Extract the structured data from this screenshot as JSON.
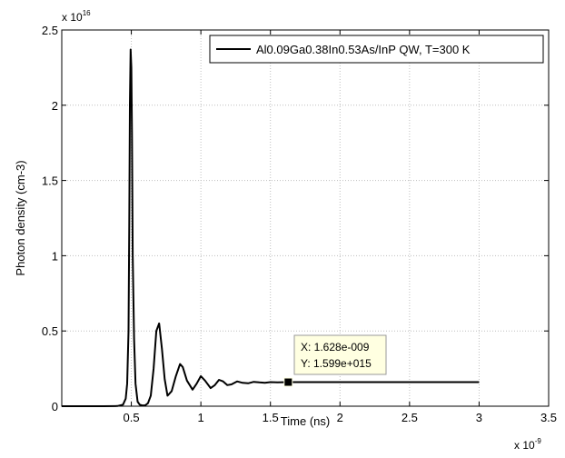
{
  "chart_data": {
    "type": "line",
    "xlabel": "Time (ns)",
    "ylabel": "Photon density (cm-3)",
    "x_exponent_label": "x 10",
    "x_exponent_power": "-9",
    "y_exponent_label": "x 10",
    "y_exponent_power": "16",
    "xlim": [
      0,
      3.5
    ],
    "ylim": [
      0,
      2.5
    ],
    "x_ticks": [
      0.5,
      1,
      1.5,
      2,
      2.5,
      3,
      3.5
    ],
    "x_tick_labels": [
      "0.5",
      "1",
      "1.5",
      "2",
      "2.5",
      "3",
      "3.5"
    ],
    "y_ticks": [
      0,
      0.5,
      1,
      1.5,
      2,
      2.5
    ],
    "y_tick_labels": [
      "0",
      "0.5",
      "1",
      "1.5",
      "2",
      "2.5"
    ],
    "grid": true,
    "legend_position": "top-right",
    "series": [
      {
        "name": "Al0.09Ga0.38In0.53As/InP QW, T=300 K",
        "color": "#000000",
        "x": [
          0,
          0.3,
          0.4,
          0.44,
          0.46,
          0.47,
          0.48,
          0.485,
          0.49,
          0.495,
          0.5,
          0.505,
          0.51,
          0.52,
          0.53,
          0.545,
          0.56,
          0.58,
          0.6,
          0.62,
          0.64,
          0.66,
          0.68,
          0.7,
          0.72,
          0.74,
          0.76,
          0.79,
          0.82,
          0.85,
          0.87,
          0.9,
          0.94,
          0.97,
          1.0,
          1.03,
          1.07,
          1.1,
          1.13,
          1.16,
          1.19,
          1.22,
          1.26,
          1.3,
          1.34,
          1.38,
          1.42,
          1.46,
          1.5,
          1.55,
          1.628,
          2.0,
          2.5,
          3.0
        ],
        "y": [
          0,
          0,
          0.001,
          0.01,
          0.05,
          0.15,
          0.5,
          1.2,
          2.0,
          2.37,
          2.25,
          1.8,
          1.0,
          0.45,
          0.15,
          0.03,
          0.01,
          0.005,
          0.006,
          0.02,
          0.07,
          0.25,
          0.5,
          0.55,
          0.38,
          0.18,
          0.07,
          0.1,
          0.2,
          0.28,
          0.26,
          0.17,
          0.11,
          0.15,
          0.2,
          0.17,
          0.12,
          0.14,
          0.175,
          0.165,
          0.14,
          0.145,
          0.165,
          0.155,
          0.152,
          0.162,
          0.158,
          0.156,
          0.16,
          0.159,
          0.1599,
          0.1599,
          0.1599,
          0.1599
        ]
      }
    ],
    "datatip": {
      "x": 1.628,
      "y": 0.1599,
      "x_label": "X: 1.628e-009",
      "y_label": "Y: 1.599e+015"
    }
  }
}
